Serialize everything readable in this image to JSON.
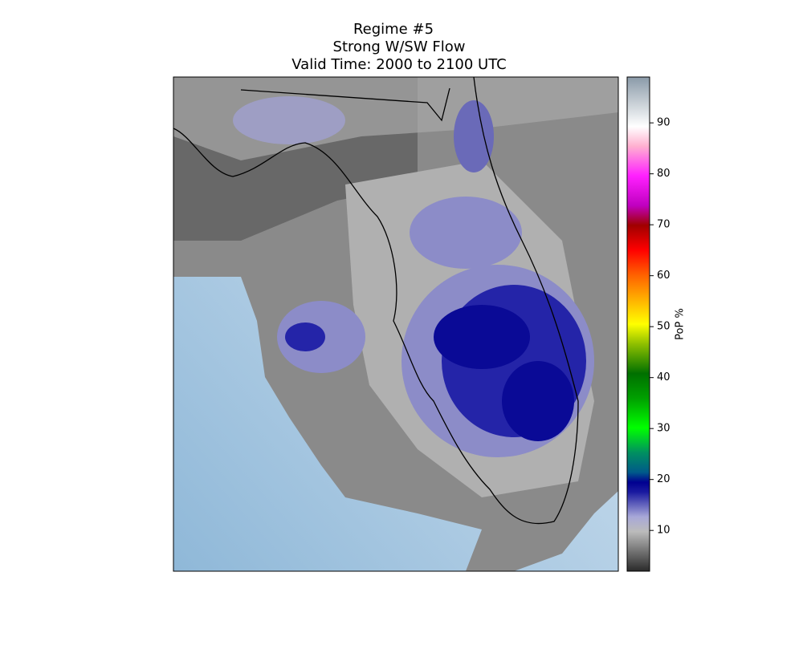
{
  "title": [
    "Regime #5",
    "Strong W/SW Flow",
    "Valid Time: 2000 to 2100 UTC"
  ],
  "colorbar": {
    "label": "PoP %",
    "lim": [
      2,
      99
    ],
    "ticks": [
      10,
      20,
      30,
      40,
      50,
      60,
      70,
      80,
      90
    ]
  }
}
